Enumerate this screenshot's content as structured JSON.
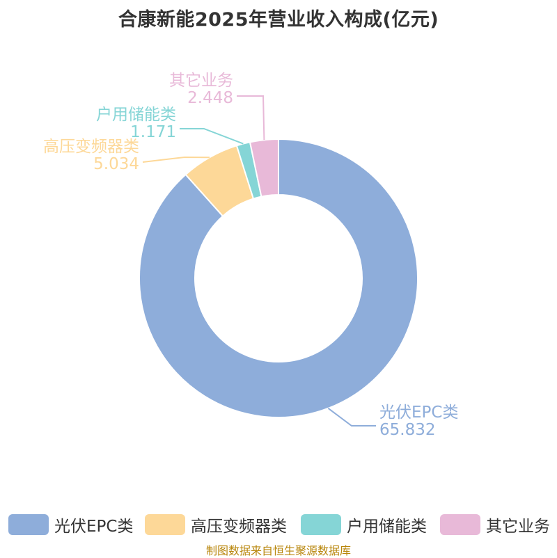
{
  "chart_data": {
    "type": "pie",
    "title": "合康新能2025年营业收入构成(亿元)",
    "donut": true,
    "series": [
      {
        "name": "光伏EPC类",
        "value": 65.832,
        "value_text": "65.832",
        "color": "#8eadda"
      },
      {
        "name": "高压变频器类",
        "value": 5.034,
        "value_text": "5.034",
        "color": "#fdd898"
      },
      {
        "name": "户用储能类",
        "value": 1.171,
        "value_text": "1.171",
        "color": "#85d5d6"
      },
      {
        "name": "其它业务",
        "value": 2.448,
        "value_text": "2.448",
        "color": "#e8b9d8"
      }
    ],
    "legend_position": "bottom"
  },
  "footer": {
    "source": "制图数据来自恒生聚源数据库"
  }
}
